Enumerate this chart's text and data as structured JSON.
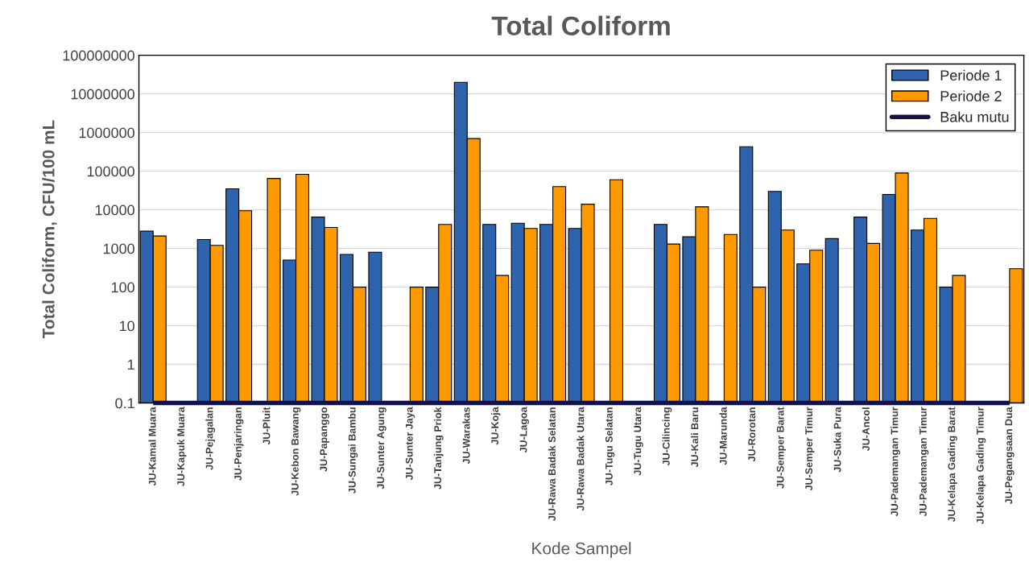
{
  "chart_data": {
    "type": "bar",
    "title": "Total Coliform",
    "xlabel": "Kode Sampel",
    "ylabel": "Total Coliform, CFU/100 mL",
    "categories": [
      "JU-Kamal Muara",
      "JU-Kapuk Muara",
      "JU-Pejagalan",
      "JU-Penjaringan",
      "JU-Pluit",
      "JU-Kebon Bawang",
      "JU-Papanggo",
      "JU-Sungai Bambu",
      "JU-Sunter Agung",
      "JU-Sunter Jaya",
      "JU-Tanjung Priok",
      "JU-Warakas",
      "JU-Koja",
      "JU-Lagoa",
      "JU-Rawa Badak Selatan",
      "JU-Rawa Badak Utara",
      "JU-Tugu Selatan",
      "JU-Tugu Utara",
      "JU-Cilincing",
      "JU-Kali Baru",
      "JU-Marunda",
      "JU-Rorotan",
      "JU-Semper Barat",
      "JU-Semper Timur",
      "JU-Suka Pura",
      "JU-Ancol",
      "JU-Pademangan Timur",
      "JU-Pademangan Timur",
      "JU-Kelapa Gading Barat",
      "JU-Kelapa Gading Timur",
      "JU-Pegangsaan Dua"
    ],
    "series": [
      {
        "name": "Periode 1",
        "color": "#2e63ae",
        "values": [
          2800,
          null,
          1700,
          35000,
          null,
          500,
          6500,
          700,
          800,
          null,
          100,
          20000000,
          4200,
          4500,
          4200,
          3300,
          null,
          null,
          4200,
          2000,
          null,
          430000,
          30000,
          400,
          1800,
          6500,
          25000,
          3000,
          100,
          null,
          null
        ]
      },
      {
        "name": "Periode 2",
        "color": "#ff9900",
        "values": [
          2100,
          null,
          1200,
          9500,
          65000,
          83000,
          3500,
          100,
          null,
          100,
          4200,
          700000,
          200,
          3300,
          40000,
          14000,
          60000,
          null,
          1300,
          12000,
          2300,
          100,
          3000,
          900,
          null,
          1350,
          90000,
          6000,
          200,
          null,
          300
        ]
      },
      {
        "name": "Baku mutu",
        "type": "line",
        "color": "#12124a",
        "values": [
          0.1,
          0.1,
          0.1,
          0.1,
          0.1,
          0.1,
          0.1,
          0.1,
          0.1,
          0.1,
          0.1,
          0.1,
          0.1,
          0.1,
          0.1,
          0.1,
          0.1,
          0.1,
          0.1,
          0.1,
          0.1,
          0.1,
          0.1,
          0.1,
          0.1,
          0.1,
          0.1,
          0.1,
          0.1,
          0.1,
          0.1
        ]
      }
    ],
    "log": "y",
    "ylim": [
      0.1,
      100000000
    ],
    "yticks": [
      0.1,
      1,
      10,
      100,
      1000,
      10000,
      100000,
      1000000,
      10000000,
      100000000
    ],
    "grid": "y",
    "legend": "top right"
  }
}
